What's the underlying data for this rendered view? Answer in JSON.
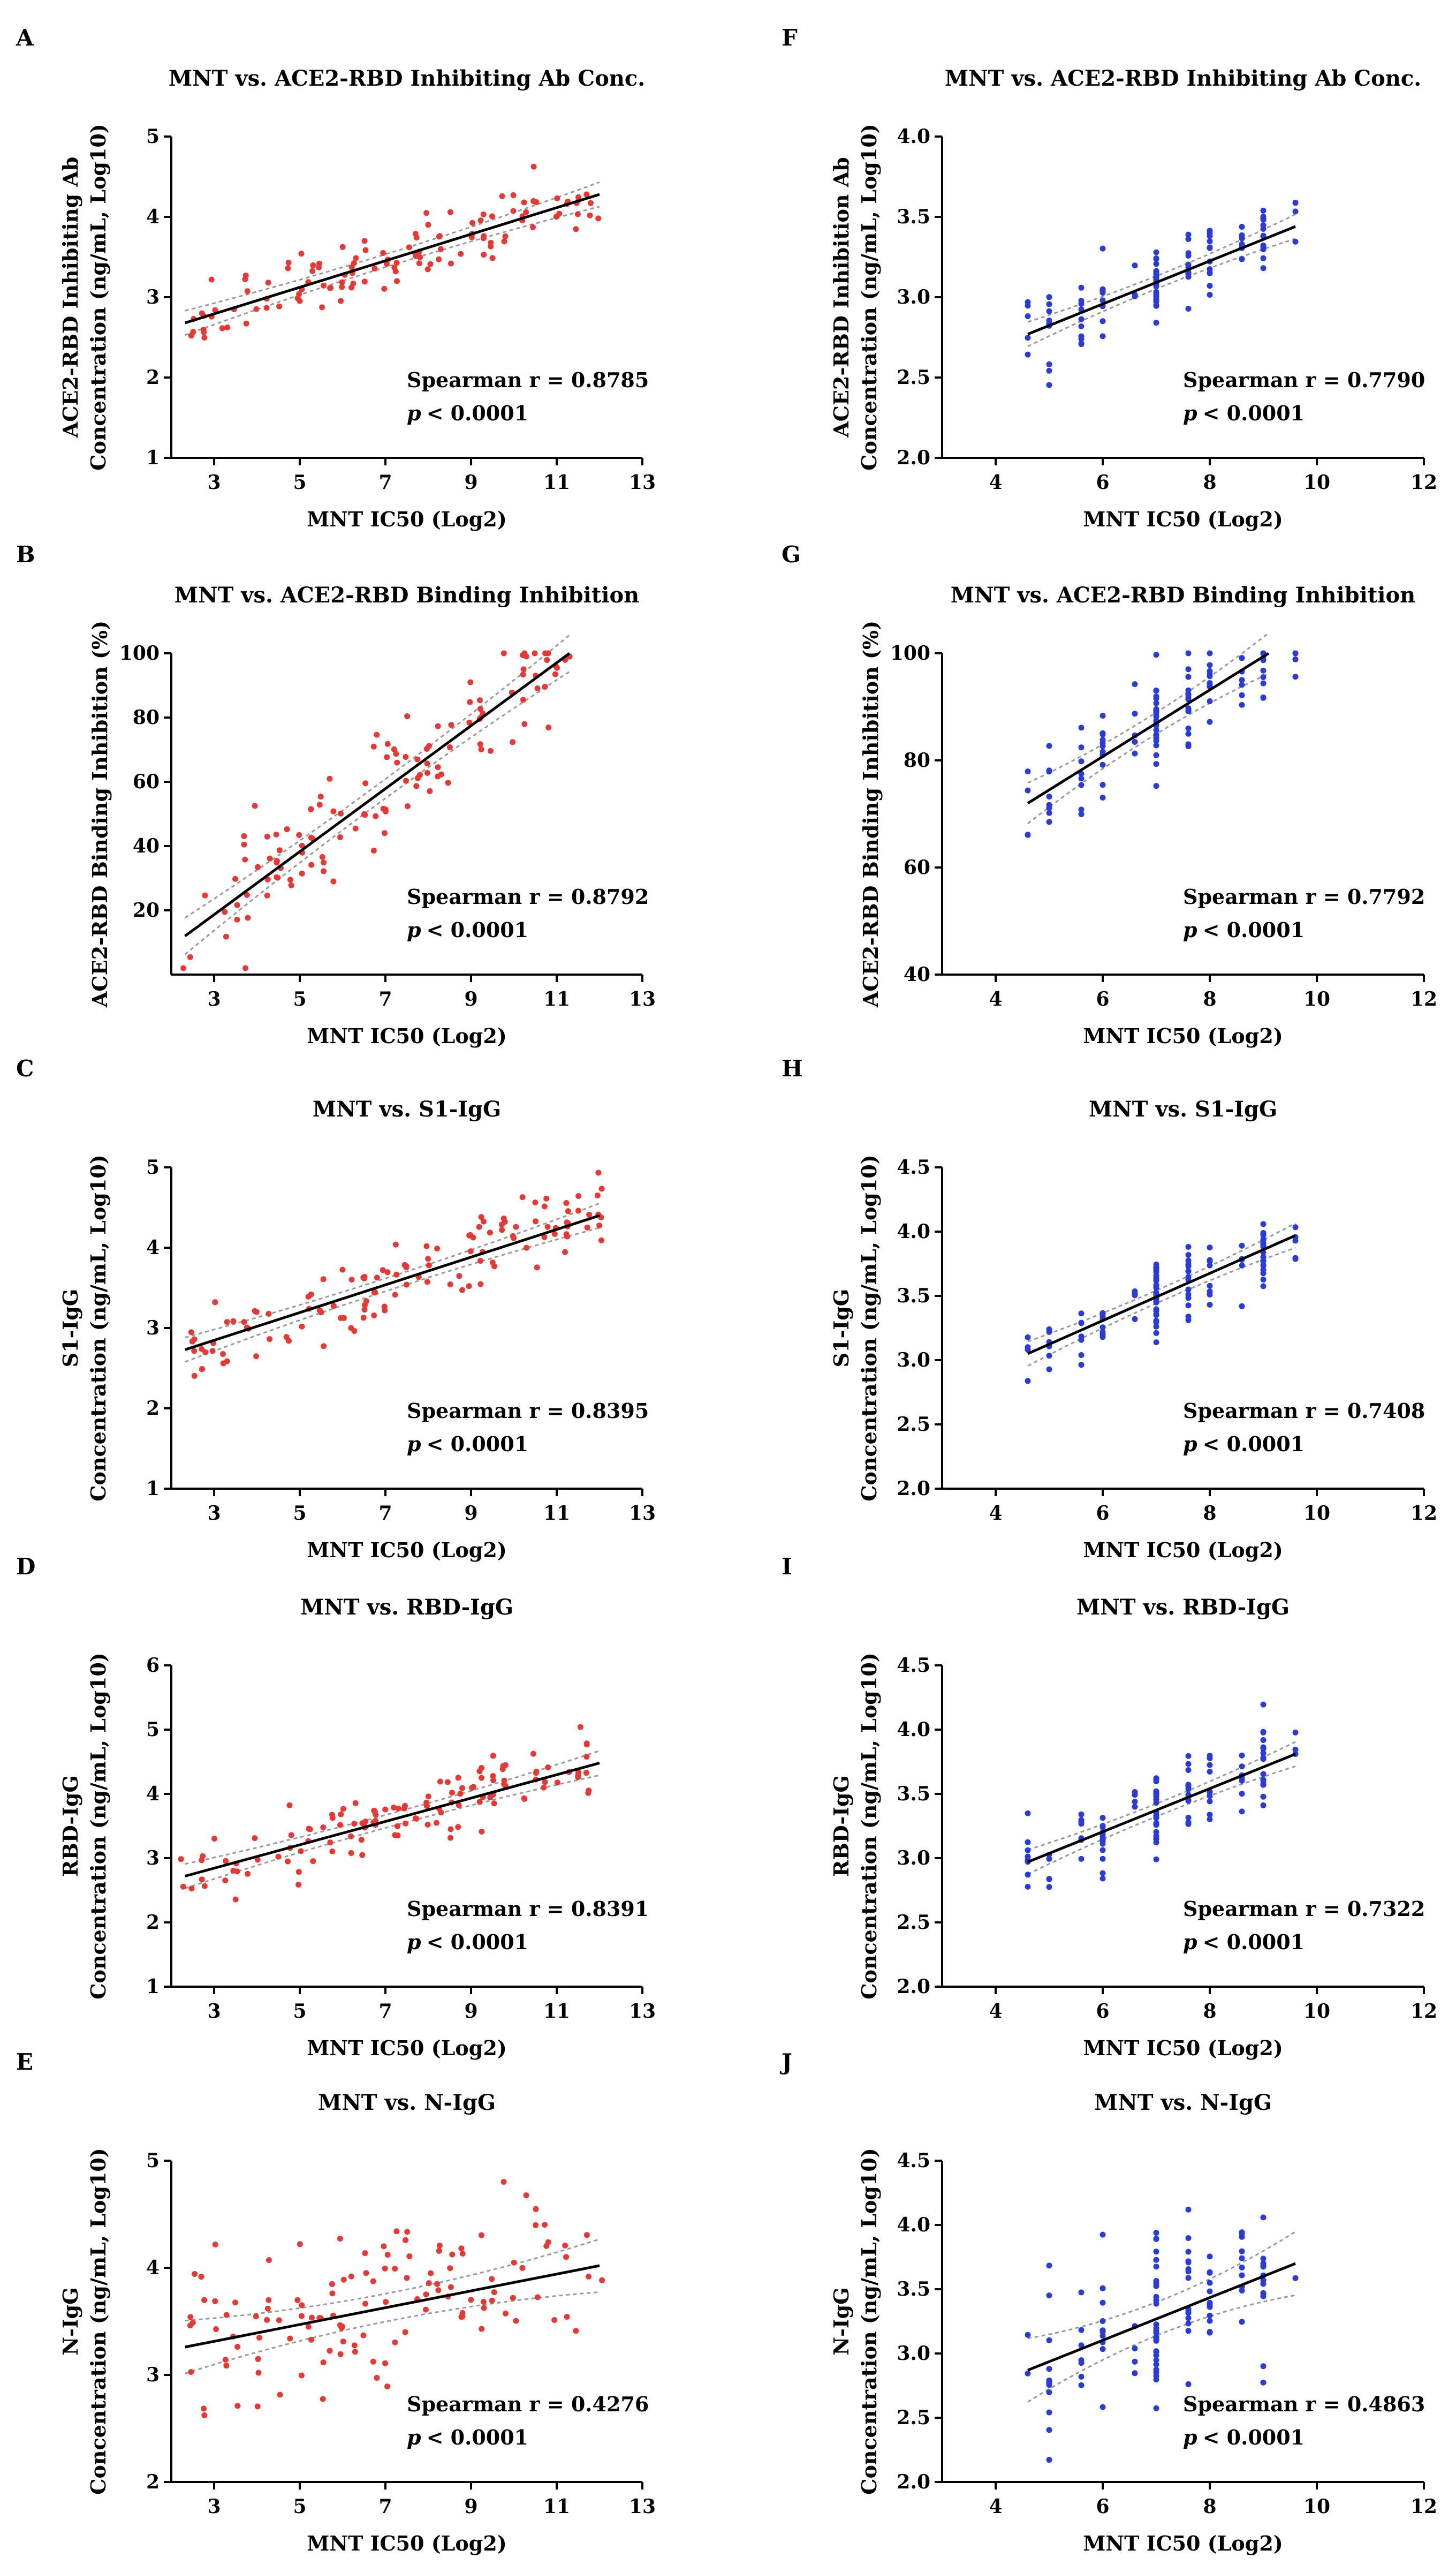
{
  "colors": {
    "left_points": "#e53935",
    "right_points": "#2a3bd6",
    "fit": "#000000",
    "ci": "#999999"
  },
  "chart_data": [
    {
      "type": "scatter",
      "letter": "A",
      "title": "MNT vs. ACE2-RBD Inhibiting Ab Conc.",
      "xlabel": "MNT IC50 (Log2)",
      "ylabel": [
        "ACE2-RBD Inhibiting Ab",
        "Concentration (ng/mL, Log10)"
      ],
      "xlim": [
        2,
        13
      ],
      "xticks": [
        3,
        5,
        7,
        9,
        11,
        13
      ],
      "ylim": [
        1,
        5
      ],
      "yticks": [
        1,
        2,
        3,
        4,
        5
      ],
      "ytick_labels": [
        "1",
        "2",
        "3",
        "4",
        "5"
      ],
      "fit": [
        [
          2.32,
          2.68
        ],
        [
          12.0,
          4.28
        ]
      ],
      "ci": 0.08,
      "stat": "Spearman r = 0.8785",
      "p": "< 0.0001",
      "color": "red",
      "n": 120,
      "seed": 11,
      "sd": 0.22
    },
    {
      "type": "scatter",
      "letter": "F",
      "title": "MNT vs. ACE2-RBD Inhibiting Ab Conc.",
      "xlabel": "MNT IC50 (Log2)",
      "ylabel": [
        "ACE2-RBD Inhibition Ab",
        "Concentration (ng/mL, Log10)"
      ],
      "xlim": [
        3,
        12
      ],
      "xticks": [
        4,
        6,
        8,
        10,
        12
      ],
      "ylim": [
        2.0,
        4.0
      ],
      "yticks": [
        2.0,
        2.5,
        3.0,
        3.5,
        4.0
      ],
      "ytick_labels": [
        "2.0",
        "2.5",
        "3.0",
        "3.5",
        "4.0"
      ],
      "fit": [
        [
          4.6,
          2.77
        ],
        [
          9.6,
          3.44
        ]
      ],
      "ci": 0.04,
      "stat": "Spearman r = 0.7790",
      "p": "< 0.0001",
      "color": "blue",
      "n": 120,
      "seed": 21,
      "sd": 0.12
    },
    {
      "type": "scatter",
      "letter": "B",
      "title": "MNT vs. ACE2-RBD Binding Inhibition",
      "xlabel": "MNT IC50 (Log2)",
      "ylabel": [
        "ACE2-RBD Binding Inhibition (%)"
      ],
      "xlim": [
        2,
        13
      ],
      "xticks": [
        3,
        5,
        7,
        9,
        11,
        13
      ],
      "ylim": [
        0,
        100
      ],
      "yticks": [
        20,
        40,
        60,
        80,
        100
      ],
      "ytick_labels": [
        "20",
        "40",
        "60",
        "80",
        "100"
      ],
      "fit": [
        [
          2.32,
          12
        ],
        [
          11.3,
          100
        ]
      ],
      "ci": 3,
      "stat": "Spearman r = 0.8792",
      "p": "< 0.0001",
      "color": "red",
      "n": 120,
      "seed": 31,
      "sd": 10
    },
    {
      "type": "scatter",
      "letter": "G",
      "title": "MNT vs. ACE2-RBD Binding Inhibition",
      "xlabel": "MNT IC50 (Log2)",
      "ylabel": [
        "ACE2-RBD Binding Inhibition (%)"
      ],
      "xlim": [
        3,
        12
      ],
      "xticks": [
        4,
        6,
        8,
        10,
        12
      ],
      "ylim": [
        40,
        100
      ],
      "yticks": [
        40,
        60,
        80,
        100
      ],
      "ytick_labels": [
        "40",
        "60",
        "80",
        "100"
      ],
      "fit": [
        [
          4.6,
          72
        ],
        [
          9.1,
          100
        ]
      ],
      "ci": 2,
      "stat": "Spearman r = 0.7792",
      "p": "< 0.0001",
      "color": "blue",
      "n": 110,
      "seed": 41,
      "sd": 5
    },
    {
      "type": "scatter",
      "letter": "C",
      "title": "MNT vs. S1-IgG",
      "xlabel": "MNT IC50 (Log2)",
      "ylabel": [
        "S1-IgG",
        "Concentration (ng/mL, Log10)"
      ],
      "xlim": [
        2,
        13
      ],
      "xticks": [
        3,
        5,
        7,
        9,
        11,
        13
      ],
      "ylim": [
        1,
        5
      ],
      "yticks": [
        1,
        2,
        3,
        4,
        5
      ],
      "ytick_labels": [
        "1",
        "2",
        "3",
        "4",
        "5"
      ],
      "fit": [
        [
          2.32,
          2.73
        ],
        [
          12.0,
          4.4
        ]
      ],
      "ci": 0.08,
      "stat": "Spearman r = 0.8395",
      "p": "< 0.0001",
      "color": "red",
      "n": 125,
      "seed": 51,
      "sd": 0.25
    },
    {
      "type": "scatter",
      "letter": "H",
      "title": "MNT vs. S1-IgG",
      "xlabel": "MNT IC50 (Log2)",
      "ylabel": [
        "S1-IgG",
        "Concentration (ng/mL, Log10)"
      ],
      "xlim": [
        3,
        12
      ],
      "xticks": [
        4,
        6,
        8,
        10,
        12
      ],
      "ylim": [
        2.0,
        4.5
      ],
      "yticks": [
        2.0,
        2.5,
        3.0,
        3.5,
        4.0,
        4.5
      ],
      "ytick_labels": [
        "2.0",
        "2.5",
        "3.0",
        "3.5",
        "4.0",
        "4.5"
      ],
      "fit": [
        [
          4.6,
          3.05
        ],
        [
          9.6,
          3.97
        ]
      ],
      "ci": 0.05,
      "stat": "Spearman r = 0.7408",
      "p": "< 0.0001",
      "color": "blue",
      "n": 120,
      "seed": 61,
      "sd": 0.16
    },
    {
      "type": "scatter",
      "letter": "D",
      "title": "MNT vs. RBD-IgG",
      "xlabel": "MNT IC50 (Log2)",
      "ylabel": [
        "RBD-IgG",
        "Concentration (ng/mL, Log10)"
      ],
      "xlim": [
        2,
        13
      ],
      "xticks": [
        3,
        5,
        7,
        9,
        11,
        13
      ],
      "ylim": [
        1,
        6
      ],
      "yticks": [
        1,
        2,
        3,
        4,
        5,
        6
      ],
      "ytick_labels": [
        "1",
        "2",
        "3",
        "4",
        "5",
        "6"
      ],
      "fit": [
        [
          2.32,
          2.72
        ],
        [
          12.0,
          4.48
        ]
      ],
      "ci": 0.1,
      "stat": "Spearman r = 0.8391",
      "p": "< 0.0001",
      "color": "red",
      "n": 125,
      "seed": 71,
      "sd": 0.28
    },
    {
      "type": "scatter",
      "letter": "I",
      "title": "MNT vs. RBD-IgG",
      "xlabel": "MNT IC50 (Log2)",
      "ylabel": [
        "RBD-IgG",
        "Concentration (ng/mL, Log10)"
      ],
      "xlim": [
        3,
        12
      ],
      "xticks": [
        4,
        6,
        8,
        10,
        12
      ],
      "ylim": [
        2.0,
        4.5
      ],
      "yticks": [
        2.0,
        2.5,
        3.0,
        3.5,
        4.0,
        4.5
      ],
      "ytick_labels": [
        "2.0",
        "2.5",
        "3.0",
        "3.5",
        "4.0",
        "4.5"
      ],
      "fit": [
        [
          4.6,
          2.97
        ],
        [
          9.6,
          3.81
        ]
      ],
      "ci": 0.05,
      "stat": "Spearman r = 0.7322",
      "p": "< 0.0001",
      "color": "blue",
      "n": 120,
      "seed": 81,
      "sd": 0.16
    },
    {
      "type": "scatter",
      "letter": "E",
      "title": "MNT vs. N-IgG",
      "xlabel": "MNT IC50 (Log2)",
      "ylabel": [
        "N-IgG",
        "Concentration (ng/mL, Log10)"
      ],
      "xlim": [
        2,
        13
      ],
      "xticks": [
        3,
        5,
        7,
        9,
        11,
        13
      ],
      "ylim": [
        2,
        5
      ],
      "yticks": [
        2,
        3,
        4,
        5
      ],
      "ytick_labels": [
        "2",
        "3",
        "4",
        "5"
      ],
      "fit": [
        [
          2.32,
          3.26
        ],
        [
          12.0,
          4.02
        ]
      ],
      "ci": 0.13,
      "stat": "Spearman r = 0.4276",
      "p": "< 0.0001",
      "color": "red",
      "n": 125,
      "seed": 91,
      "sd": 0.38
    },
    {
      "type": "scatter",
      "letter": "J",
      "title": "MNT vs. N-IgG",
      "xlabel": "MNT IC50 (Log2)",
      "ylabel": [
        "N-IgG",
        "Concentration (ng/mL, Log10)"
      ],
      "xlim": [
        3,
        12
      ],
      "xticks": [
        4,
        6,
        8,
        10,
        12
      ],
      "ylim": [
        2.0,
        4.5
      ],
      "yticks": [
        2.0,
        2.5,
        3.0,
        3.5,
        4.0,
        4.5
      ],
      "ytick_labels": [
        "2.0",
        "2.5",
        "3.0",
        "3.5",
        "4.0",
        "4.5"
      ],
      "fit": [
        [
          4.6,
          2.87
        ],
        [
          9.6,
          3.7
        ]
      ],
      "ci": 0.13,
      "stat": "Spearman r = 0.4863",
      "p": "< 0.0001",
      "color": "blue",
      "n": 120,
      "seed": 101,
      "sd": 0.32
    }
  ]
}
